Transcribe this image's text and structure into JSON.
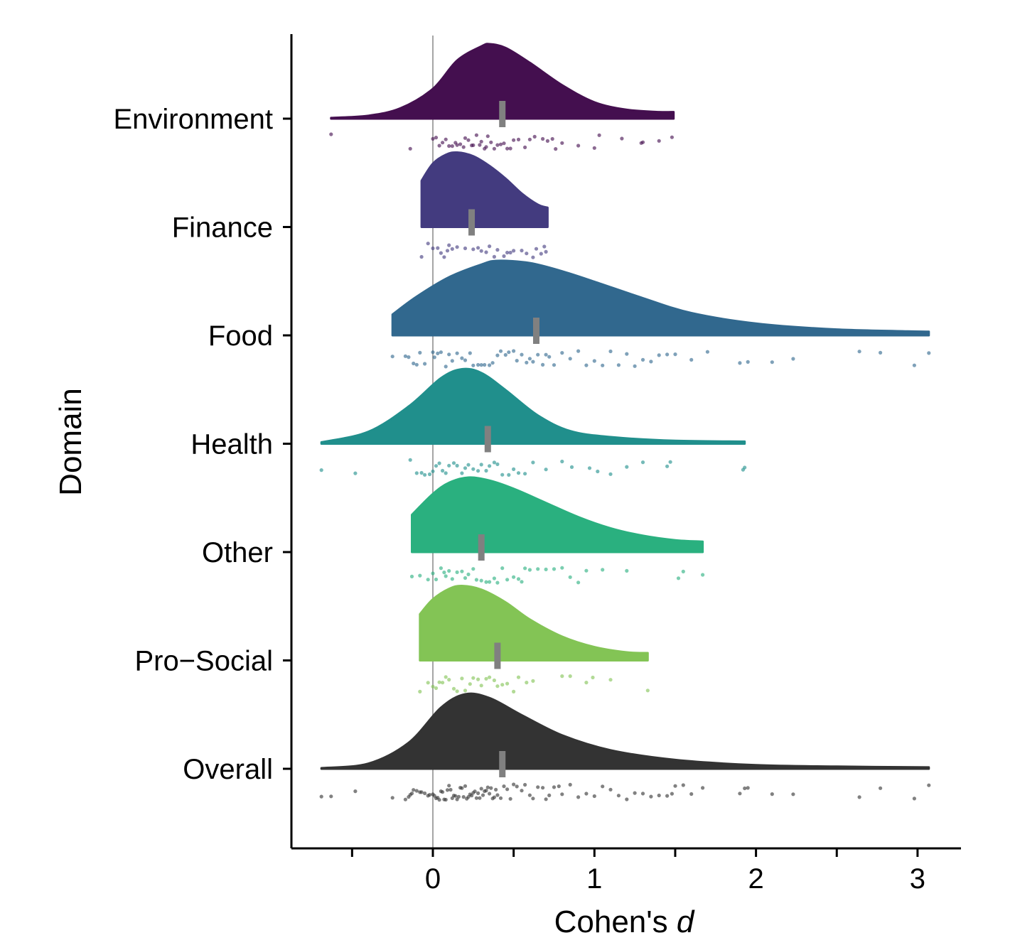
{
  "chart_data": {
    "type": "raincloud",
    "orientation": "horizontal",
    "xlabel": {
      "text": "Cohen's ",
      "italic": "d"
    },
    "ylabel": "Domain",
    "xlim": [
      -0.88,
      3.29
    ],
    "xticks": [
      -0.5,
      0,
      0.5,
      1,
      1.5,
      2,
      2.5,
      3
    ],
    "xtick_labels": [
      "",
      "0",
      "",
      "1",
      "",
      "2",
      "",
      "3"
    ],
    "reference_line_x": 0,
    "grid": false,
    "categories": [
      {
        "name": "Environment",
        "color": "#440f4f",
        "median": 0.43,
        "range": [
          -0.63,
          1.49
        ],
        "density": [
          [
            -0.63,
            0.01
          ],
          [
            -0.4,
            0.04
          ],
          [
            -0.2,
            0.14
          ],
          [
            0,
            0.4
          ],
          [
            0.15,
            0.78
          ],
          [
            0.3,
            0.97
          ],
          [
            0.35,
            1
          ],
          [
            0.45,
            0.95
          ],
          [
            0.6,
            0.75
          ],
          [
            0.8,
            0.45
          ],
          [
            1.0,
            0.22
          ],
          [
            1.2,
            0.12
          ],
          [
            1.4,
            0.09
          ],
          [
            1.49,
            0.09
          ]
        ],
        "points": [
          -0.63,
          -0.14,
          0.0,
          0.02,
          0.04,
          0.06,
          0.08,
          0.1,
          0.12,
          0.14,
          0.15,
          0.17,
          0.19,
          0.2,
          0.22,
          0.24,
          0.25,
          0.27,
          0.29,
          0.3,
          0.32,
          0.33,
          0.34,
          0.36,
          0.38,
          0.4,
          0.42,
          0.44,
          0.46,
          0.48,
          0.5,
          0.53,
          0.57,
          0.6,
          0.63,
          0.68,
          0.71,
          0.74,
          0.76,
          0.8,
          0.9,
          1.0,
          1.03,
          1.17,
          1.29,
          1.3,
          1.4,
          1.48
        ]
      },
      {
        "name": "Finance",
        "color": "#433b7f",
        "median": 0.24,
        "range": [
          -0.07,
          0.71
        ],
        "density": [
          [
            -0.07,
            0.62
          ],
          [
            0.0,
            0.85
          ],
          [
            0.08,
            0.97
          ],
          [
            0.15,
            1
          ],
          [
            0.25,
            0.95
          ],
          [
            0.35,
            0.82
          ],
          [
            0.45,
            0.65
          ],
          [
            0.55,
            0.45
          ],
          [
            0.65,
            0.3
          ],
          [
            0.71,
            0.26
          ]
        ],
        "points": [
          -0.07,
          -0.03,
          0.0,
          0.03,
          0.05,
          0.07,
          0.09,
          0.1,
          0.12,
          0.15,
          0.2,
          0.25,
          0.28,
          0.3,
          0.33,
          0.35,
          0.38,
          0.4,
          0.44,
          0.46,
          0.48,
          0.5,
          0.55,
          0.58,
          0.62,
          0.64,
          0.67,
          0.69,
          0.7
        ]
      },
      {
        "name": "Food",
        "color": "#31688e",
        "median": 0.64,
        "range": [
          -0.25,
          3.07
        ],
        "density": [
          [
            -0.25,
            0.28
          ],
          [
            -0.1,
            0.52
          ],
          [
            0.1,
            0.78
          ],
          [
            0.3,
            0.95
          ],
          [
            0.4,
            1
          ],
          [
            0.6,
            0.97
          ],
          [
            0.8,
            0.86
          ],
          [
            1.0,
            0.72
          ],
          [
            1.3,
            0.5
          ],
          [
            1.6,
            0.3
          ],
          [
            2.0,
            0.16
          ],
          [
            2.5,
            0.08
          ],
          [
            3.07,
            0.05
          ]
        ],
        "points": [
          -0.25,
          -0.17,
          -0.15,
          -0.12,
          -0.1,
          -0.08,
          -0.05,
          0.0,
          0.01,
          0.03,
          0.05,
          0.08,
          0.1,
          0.12,
          0.15,
          0.18,
          0.2,
          0.23,
          0.25,
          0.28,
          0.3,
          0.32,
          0.35,
          0.37,
          0.4,
          0.42,
          0.45,
          0.47,
          0.5,
          0.52,
          0.55,
          0.58,
          0.6,
          0.62,
          0.65,
          0.68,
          0.7,
          0.72,
          0.75,
          0.8,
          0.85,
          0.9,
          0.95,
          1.0,
          1.05,
          1.1,
          1.15,
          1.2,
          1.25,
          1.3,
          1.35,
          1.4,
          1.45,
          1.5,
          1.6,
          1.7,
          1.9,
          1.95,
          2.1,
          2.23,
          2.64,
          2.77,
          2.98,
          3.07
        ]
      },
      {
        "name": "Health",
        "color": "#208f8c",
        "median": 0.34,
        "range": [
          -0.69,
          1.93
        ],
        "density": [
          [
            -0.69,
            0.02
          ],
          [
            -0.4,
            0.16
          ],
          [
            -0.15,
            0.5
          ],
          [
            0.05,
            0.88
          ],
          [
            0.18,
            1
          ],
          [
            0.3,
            0.95
          ],
          [
            0.45,
            0.72
          ],
          [
            0.65,
            0.38
          ],
          [
            0.85,
            0.17
          ],
          [
            1.1,
            0.09
          ],
          [
            1.5,
            0.04
          ],
          [
            1.93,
            0.03
          ]
        ],
        "points": [
          -0.69,
          -0.48,
          -0.14,
          -0.1,
          -0.07,
          -0.05,
          -0.02,
          0.0,
          0.02,
          0.04,
          0.06,
          0.08,
          0.1,
          0.13,
          0.15,
          0.18,
          0.2,
          0.22,
          0.25,
          0.28,
          0.3,
          0.33,
          0.35,
          0.38,
          0.4,
          0.43,
          0.47,
          0.5,
          0.53,
          0.57,
          0.62,
          0.7,
          0.8,
          0.86,
          0.97,
          1.02,
          1.1,
          1.2,
          1.3,
          1.45,
          1.47,
          1.92,
          1.93
        ]
      },
      {
        "name": "Other",
        "color": "#2ab07f",
        "median": 0.3,
        "range": [
          -0.13,
          1.67
        ],
        "density": [
          [
            -0.13,
            0.5
          ],
          [
            0.0,
            0.78
          ],
          [
            0.1,
            0.93
          ],
          [
            0.22,
            1
          ],
          [
            0.35,
            0.96
          ],
          [
            0.5,
            0.85
          ],
          [
            0.7,
            0.66
          ],
          [
            0.9,
            0.47
          ],
          [
            1.1,
            0.32
          ],
          [
            1.3,
            0.22
          ],
          [
            1.5,
            0.16
          ],
          [
            1.67,
            0.14
          ]
        ],
        "points": [
          -0.13,
          -0.08,
          -0.03,
          0.0,
          0.02,
          0.05,
          0.07,
          0.08,
          0.1,
          0.12,
          0.15,
          0.18,
          0.2,
          0.22,
          0.25,
          0.27,
          0.3,
          0.33,
          0.35,
          0.38,
          0.4,
          0.43,
          0.46,
          0.5,
          0.53,
          0.55,
          0.57,
          0.6,
          0.65,
          0.7,
          0.75,
          0.8,
          0.85,
          0.9,
          0.95,
          1.05,
          1.2,
          1.52,
          1.55,
          1.67
        ]
      },
      {
        "name": "Pro−Social",
        "color": "#83c455",
        "median": 0.4,
        "range": [
          -0.08,
          1.33
        ],
        "density": [
          [
            -0.08,
            0.62
          ],
          [
            0.0,
            0.82
          ],
          [
            0.1,
            0.96
          ],
          [
            0.18,
            1
          ],
          [
            0.3,
            0.95
          ],
          [
            0.45,
            0.78
          ],
          [
            0.6,
            0.55
          ],
          [
            0.8,
            0.32
          ],
          [
            1.0,
            0.18
          ],
          [
            1.2,
            0.11
          ],
          [
            1.33,
            0.1
          ]
        ],
        "points": [
          -0.08,
          -0.03,
          0.0,
          0.02,
          0.04,
          0.06,
          0.08,
          0.1,
          0.13,
          0.15,
          0.18,
          0.2,
          0.23,
          0.25,
          0.28,
          0.3,
          0.33,
          0.35,
          0.38,
          0.4,
          0.43,
          0.46,
          0.5,
          0.53,
          0.58,
          0.62,
          0.8,
          0.85,
          0.95,
          0.99,
          1.1,
          1.33
        ]
      },
      {
        "name": "Overall",
        "color": "#333333",
        "median": 0.43,
        "range": [
          -0.69,
          3.07
        ],
        "density": [
          [
            -0.69,
            0.01
          ],
          [
            -0.4,
            0.07
          ],
          [
            -0.15,
            0.35
          ],
          [
            0.05,
            0.82
          ],
          [
            0.2,
            1
          ],
          [
            0.35,
            0.95
          ],
          [
            0.55,
            0.72
          ],
          [
            0.8,
            0.45
          ],
          [
            1.1,
            0.25
          ],
          [
            1.5,
            0.12
          ],
          [
            2.0,
            0.05
          ],
          [
            2.5,
            0.03
          ],
          [
            3.07,
            0.02
          ]
        ],
        "points": [
          -0.69,
          -0.63,
          -0.48,
          -0.25,
          -0.17,
          -0.15,
          -0.14,
          -0.13,
          -0.12,
          -0.1,
          -0.08,
          -0.07,
          -0.05,
          -0.03,
          -0.02,
          0.0,
          0.01,
          0.02,
          0.03,
          0.04,
          0.05,
          0.06,
          0.07,
          0.08,
          0.09,
          0.1,
          0.11,
          0.12,
          0.13,
          0.14,
          0.15,
          0.16,
          0.17,
          0.18,
          0.19,
          0.2,
          0.21,
          0.22,
          0.23,
          0.24,
          0.25,
          0.26,
          0.27,
          0.28,
          0.29,
          0.3,
          0.31,
          0.32,
          0.33,
          0.34,
          0.35,
          0.36,
          0.37,
          0.38,
          0.39,
          0.4,
          0.42,
          0.44,
          0.46,
          0.48,
          0.5,
          0.52,
          0.55,
          0.57,
          0.6,
          0.62,
          0.65,
          0.68,
          0.7,
          0.72,
          0.75,
          0.78,
          0.8,
          0.85,
          0.9,
          0.95,
          1.0,
          1.05,
          1.1,
          1.15,
          1.2,
          1.25,
          1.3,
          1.35,
          1.4,
          1.45,
          1.48,
          1.5,
          1.55,
          1.6,
          1.67,
          1.9,
          1.93,
          1.95,
          2.1,
          2.23,
          2.64,
          2.77,
          2.98,
          3.07
        ]
      }
    ]
  }
}
